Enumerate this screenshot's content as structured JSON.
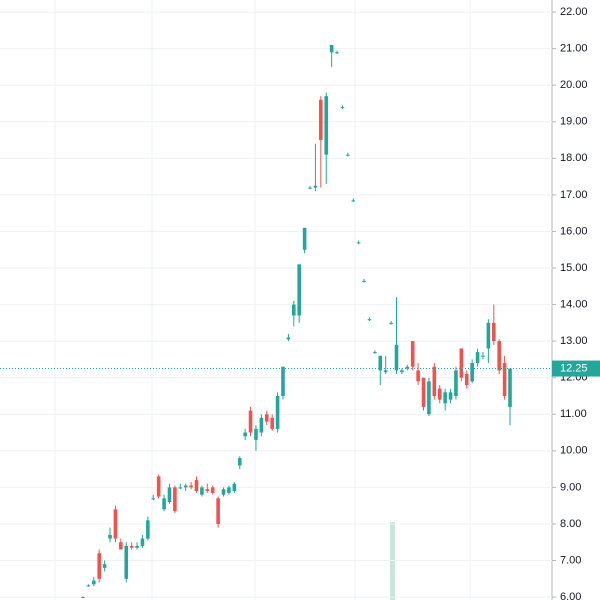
{
  "chart_data": {
    "type": "candlestick",
    "categories": [
      null,
      null,
      null,
      null,
      null,
      null,
      null,
      null,
      null,
      null,
      null,
      null,
      null,
      null,
      null,
      null,
      null,
      null,
      null,
      null,
      null,
      null,
      null,
      null,
      null,
      null,
      null,
      null,
      null,
      null,
      null,
      null,
      null,
      null,
      null,
      null,
      null,
      null,
      null,
      null,
      null,
      null,
      null,
      null,
      null,
      null,
      null,
      null,
      null,
      null,
      null,
      null,
      null,
      null,
      null,
      null,
      null,
      null,
      null,
      null,
      null,
      null,
      null,
      null,
      null,
      null,
      null,
      null,
      null,
      null,
      null,
      null,
      null,
      null,
      null,
      null,
      null,
      null,
      null,
      null
    ],
    "open": [
      6.0,
      6.3,
      6.35,
      7.2,
      6.8,
      7.6,
      8.4,
      7.5,
      6.5,
      7.4,
      7.35,
      7.4,
      7.6,
      8.7,
      9.3,
      8.4,
      8.6,
      9.0,
      9.0,
      9.0,
      9.05,
      9.2,
      8.8,
      8.95,
      9.0,
      8.7,
      8.8,
      8.85,
      8.9,
      9.6,
      10.4,
      11.1,
      10.3,
      10.5,
      11.0,
      10.9,
      10.6,
      11.5,
      13.05,
      13.7,
      13.7,
      15.5,
      17.2,
      17.2,
      19.6,
      18.1,
      20.9,
      20.9,
      19.4,
      18.1,
      16.85,
      15.7,
      14.65,
      13.6,
      12.7,
      12.2,
      12.15,
      13.5,
      12.2,
      12.15,
      12.25,
      13.0,
      12.2,
      12.0,
      11.0,
      12.3,
      11.7,
      11.3,
      11.4,
      11.5,
      12.8,
      12.1,
      11.9,
      12.4,
      12.6,
      12.8,
      13.5,
      13.0,
      12.4,
      11.2
    ],
    "high": [
      6.02,
      6.35,
      6.55,
      7.3,
      7.0,
      7.9,
      8.5,
      7.6,
      7.5,
      7.5,
      7.5,
      7.7,
      8.2,
      8.8,
      9.35,
      8.8,
      9.1,
      9.05,
      9.1,
      9.1,
      9.15,
      9.3,
      9.05,
      9.1,
      9.05,
      8.75,
      9.0,
      9.05,
      9.15,
      9.85,
      10.6,
      11.2,
      10.7,
      11.0,
      11.1,
      11.0,
      11.6,
      12.3,
      13.2,
      14.1,
      15.1,
      16.1,
      17.25,
      18.4,
      19.7,
      19.8,
      21.1,
      20.95,
      19.45,
      18.15,
      16.9,
      15.75,
      14.7,
      13.65,
      12.75,
      12.6,
      12.6,
      13.55,
      14.2,
      12.25,
      12.35,
      13.0,
      12.4,
      12.0,
      12.0,
      12.4,
      11.8,
      11.7,
      11.7,
      12.3,
      12.8,
      12.2,
      12.5,
      12.8,
      12.7,
      13.6,
      14.0,
      13.05,
      12.6,
      12.25
    ],
    "low": [
      5.98,
      6.28,
      6.3,
      6.4,
      6.7,
      7.5,
      7.5,
      7.3,
      6.4,
      7.3,
      7.3,
      7.35,
      7.55,
      8.65,
      8.7,
      8.35,
      8.55,
      8.3,
      8.95,
      8.9,
      8.95,
      8.85,
      8.75,
      8.85,
      8.8,
      7.9,
      8.75,
      8.8,
      8.85,
      9.5,
      10.3,
      10.4,
      10.0,
      10.4,
      10.7,
      10.55,
      10.5,
      11.4,
      13.0,
      13.4,
      13.5,
      15.4,
      17.15,
      17.1,
      17.2,
      17.3,
      20.5,
      20.85,
      19.35,
      18.05,
      16.8,
      15.65,
      14.6,
      13.55,
      12.65,
      11.8,
      12.1,
      13.45,
      12.1,
      12.1,
      12.2,
      12.2,
      11.8,
      11.1,
      10.95,
      11.4,
      11.3,
      11.1,
      11.3,
      11.4,
      11.9,
      11.7,
      11.85,
      12.3,
      12.5,
      12.4,
      12.9,
      12.1,
      11.4,
      10.7
    ],
    "close": [
      6.0,
      6.32,
      6.45,
      6.5,
      6.9,
      7.7,
      7.6,
      7.3,
      7.4,
      7.35,
      7.4,
      7.6,
      8.1,
      8.7,
      8.75,
      8.7,
      9.0,
      8.35,
      9.0,
      9.05,
      9.0,
      8.9,
      9.0,
      8.9,
      8.85,
      8.0,
      8.95,
      9.0,
      9.1,
      9.8,
      10.5,
      10.5,
      10.6,
      10.9,
      10.8,
      10.6,
      11.5,
      12.3,
      13.1,
      14.0,
      15.1,
      16.1,
      17.2,
      17.25,
      18.5,
      19.7,
      21.1,
      20.9,
      19.4,
      18.1,
      16.85,
      15.7,
      14.65,
      13.6,
      12.7,
      12.6,
      12.2,
      13.5,
      12.9,
      12.2,
      12.3,
      12.3,
      11.9,
      11.2,
      11.9,
      11.5,
      11.4,
      11.6,
      11.6,
      12.2,
      12.0,
      11.8,
      12.4,
      12.7,
      12.6,
      13.5,
      13.0,
      12.2,
      11.5,
      12.25
    ],
    "up_color": "#26a69a",
    "down_color": "#ef5350",
    "last_price": 12.25,
    "ylim": [
      5.92,
      22.33
    ],
    "yticks": [
      {
        "value": 6,
        "label": "6.00"
      },
      {
        "value": 7,
        "label": "7.00"
      },
      {
        "value": 8,
        "label": "8.00"
      },
      {
        "value": 9,
        "label": "9.00"
      },
      {
        "value": 10,
        "label": "10.00"
      },
      {
        "value": 11,
        "label": "11.00"
      },
      {
        "value": 12,
        "label": "12.00"
      },
      {
        "value": 13,
        "label": "13.00"
      },
      {
        "value": 14,
        "label": "14.00"
      },
      {
        "value": 15,
        "label": "15.00"
      },
      {
        "value": 16,
        "label": "16.00"
      },
      {
        "value": 17,
        "label": "17.00"
      },
      {
        "value": 18,
        "label": "18.00"
      },
      {
        "value": 19,
        "label": "19.00"
      },
      {
        "value": 20,
        "label": "20.00"
      },
      {
        "value": 21,
        "label": "21.00"
      },
      {
        "value": 22,
        "label": "22.00"
      }
    ],
    "grid": true
  }
}
